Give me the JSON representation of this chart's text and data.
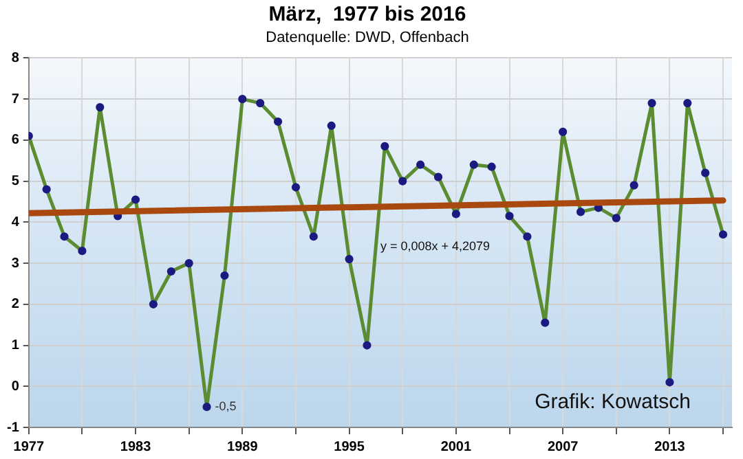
{
  "chart_data": {
    "type": "line",
    "title": "März,  1977 bis 2016",
    "subtitle": "Datenquelle: DWD, Offenbach",
    "x": [
      1977,
      1978,
      1979,
      1980,
      1981,
      1982,
      1983,
      1984,
      1985,
      1986,
      1987,
      1988,
      1989,
      1990,
      1991,
      1992,
      1993,
      1994,
      1995,
      1996,
      1997,
      1998,
      1999,
      2000,
      2001,
      2002,
      2003,
      2004,
      2005,
      2006,
      2007,
      2008,
      2009,
      2010,
      2011,
      2012,
      2013,
      2014,
      2015,
      2016
    ],
    "series": [
      {
        "color": "#5b8c32",
        "marker": "circle",
        "values": [
          6.1,
          4.8,
          3.65,
          3.3,
          6.8,
          4.15,
          4.55,
          2.0,
          2.8,
          3.0,
          -0.5,
          2.7,
          7.0,
          6.9,
          6.45,
          4.85,
          3.65,
          6.35,
          3.1,
          1.0,
          5.85,
          5.0,
          5.4,
          5.1,
          4.2,
          5.4,
          5.35,
          4.15,
          3.65,
          1.55,
          6.2,
          4.25,
          4.35,
          4.1,
          4.9,
          6.9,
          0.1,
          6.9,
          5.2,
          3.7
        ],
        "value_labels": [
          null,
          null,
          null,
          null,
          null,
          null,
          null,
          null,
          null,
          null,
          "-0,5",
          null,
          null,
          null,
          null,
          null,
          null,
          null,
          null,
          null,
          null,
          null,
          null,
          null,
          null,
          null,
          null,
          null,
          null,
          null,
          null,
          null,
          null,
          null,
          null,
          null,
          null,
          null,
          null,
          null
        ]
      },
      {
        "type": "line",
        "color": "#a9490f",
        "marker": "none",
        "x": [
          1977,
          2016
        ],
        "values": [
          4.22,
          4.53
        ]
      }
    ],
    "xlim": [
      1977,
      2016.5
    ],
    "xticks": [
      1977,
      {
        "value": 1980,
        "label": null
      },
      1983,
      {
        "value": 1986,
        "label": null
      },
      1989,
      {
        "value": 1992,
        "label": null
      },
      1995,
      {
        "value": 1998,
        "label": null
      },
      2001,
      {
        "value": 2004,
        "label": null
      },
      2007,
      {
        "value": 2010,
        "label": null
      },
      2013,
      {
        "value": 2016,
        "label": null
      }
    ],
    "ylim": [
      -1,
      8
    ],
    "yticks": [
      -1,
      0,
      1,
      2,
      3,
      4,
      5,
      6,
      7,
      8
    ],
    "grid": true,
    "legend": false,
    "annotations": [
      "y = 0,008x + 4,2079",
      "Grafik: Kowatsch"
    ]
  }
}
